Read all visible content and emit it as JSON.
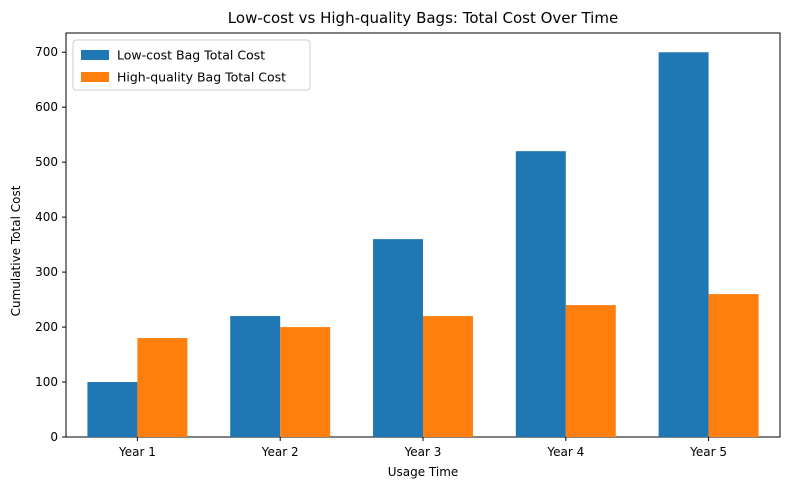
{
  "chart_data": {
    "type": "bar",
    "title": "Low-cost vs High-quality Bags: Total Cost Over Time",
    "xlabel": "Usage Time",
    "ylabel": "Cumulative Total Cost",
    "categories": [
      "Year 1",
      "Year 2",
      "Year 3",
      "Year 4",
      "Year 5"
    ],
    "series": [
      {
        "name": "Low-cost Bag Total Cost",
        "color": "#1f77b4",
        "values": [
          100,
          220,
          360,
          520,
          700
        ]
      },
      {
        "name": "High-quality Bag Total Cost",
        "color": "#ff7f0e",
        "values": [
          180,
          200,
          220,
          240,
          260
        ]
      }
    ],
    "ylim": [
      0,
      735
    ],
    "yticks": [
      0,
      100,
      200,
      300,
      400,
      500,
      600,
      700
    ],
    "ytick_labels": [
      "0",
      "100",
      "200",
      "300",
      "400",
      "500",
      "600",
      "700"
    ],
    "grid": false,
    "legend_position": "top-left"
  }
}
